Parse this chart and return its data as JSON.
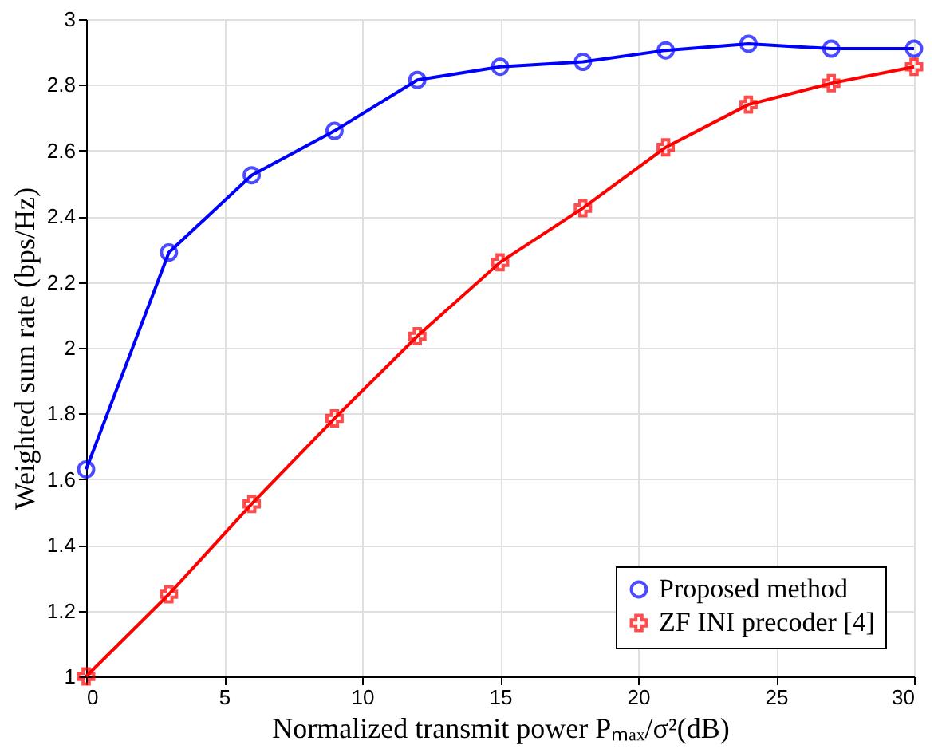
{
  "chart_data": {
    "type": "line",
    "xlabel": "Normalized transmit power Pₘₐₓ/σ²(dB)",
    "ylabel": "Weighted sum rate (bps/Hz)",
    "x": [
      0,
      3,
      6,
      9,
      12,
      15,
      18,
      21,
      24,
      27,
      30
    ],
    "series": [
      {
        "name": "Proposed method",
        "color": "#0000ff",
        "marker": "circle",
        "values": [
          1.63,
          2.29,
          2.525,
          2.66,
          2.815,
          2.855,
          2.87,
          2.905,
          2.925,
          2.91,
          2.91
        ]
      },
      {
        "name": "ZF INI precoder [4]",
        "color": "#ff0000",
        "marker": "cross",
        "values": [
          1.0,
          1.25,
          1.525,
          1.785,
          2.035,
          2.26,
          2.425,
          2.61,
          2.74,
          2.805,
          2.855
        ]
      }
    ],
    "xlim": [
      0,
      30
    ],
    "xticks": [
      0,
      5,
      10,
      15,
      20,
      25,
      30
    ],
    "ylim": [
      1,
      3
    ],
    "yticks": [
      1,
      1.2,
      1.4,
      1.6,
      1.8,
      2,
      2.2,
      2.4,
      2.6,
      2.8,
      3
    ],
    "grid": true,
    "legend": "bottom right",
    "line_style": "solid"
  }
}
